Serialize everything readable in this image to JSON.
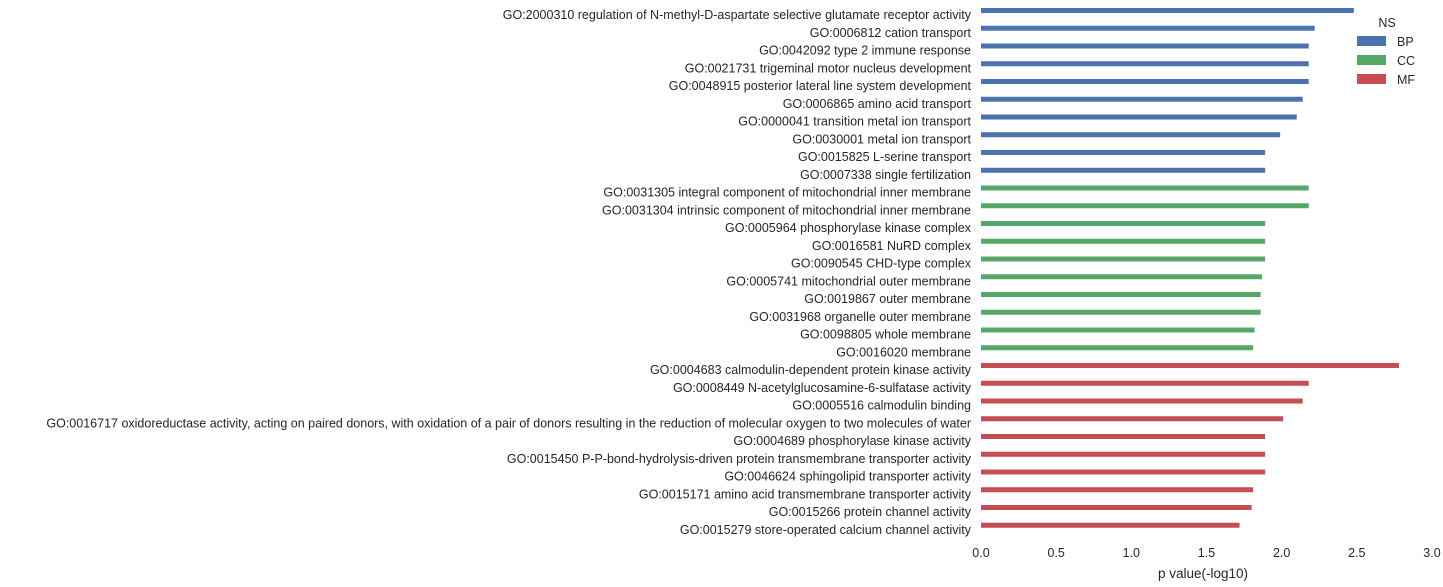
{
  "chart_data": {
    "type": "bar",
    "orientation": "horizontal",
    "xlabel": "p value(-log10)",
    "ylabel": "",
    "xlim": [
      0,
      3.0
    ],
    "xticks": [
      "0.0",
      "0.5",
      "1.0",
      "1.5",
      "2.0",
      "2.5",
      "3.0"
    ],
    "grid": false,
    "legend": {
      "title": "NS",
      "placement": "top-right",
      "entries": [
        {
          "name": "BP",
          "color": "#4c72b0"
        },
        {
          "name": "CC",
          "color": "#55a868"
        },
        {
          "name": "MF",
          "color": "#c44e52"
        }
      ]
    },
    "bars": [
      {
        "label": "GO:2000310 regulation of N-methyl-D-aspartate selective glutamate receptor activity",
        "ns": "BP",
        "value": 2.48
      },
      {
        "label": "GO:0006812 cation transport",
        "ns": "BP",
        "value": 2.22
      },
      {
        "label": "GO:0042092 type 2 immune response",
        "ns": "BP",
        "value": 2.18
      },
      {
        "label": "GO:0021731 trigeminal motor nucleus development",
        "ns": "BP",
        "value": 2.18
      },
      {
        "label": "GO:0048915 posterior lateral line system development",
        "ns": "BP",
        "value": 2.18
      },
      {
        "label": "GO:0006865 amino acid transport",
        "ns": "BP",
        "value": 2.14
      },
      {
        "label": "GO:0000041 transition metal ion transport",
        "ns": "BP",
        "value": 2.1
      },
      {
        "label": "GO:0030001 metal ion transport",
        "ns": "BP",
        "value": 1.99
      },
      {
        "label": "GO:0015825 L-serine transport",
        "ns": "BP",
        "value": 1.89
      },
      {
        "label": "GO:0007338 single fertilization",
        "ns": "BP",
        "value": 1.89
      },
      {
        "label": "GO:0031305 integral component of mitochondrial inner membrane",
        "ns": "CC",
        "value": 2.18
      },
      {
        "label": "GO:0031304 intrinsic component of mitochondrial inner membrane",
        "ns": "CC",
        "value": 2.18
      },
      {
        "label": "GO:0005964 phosphorylase kinase complex",
        "ns": "CC",
        "value": 1.89
      },
      {
        "label": "GO:0016581 NuRD complex",
        "ns": "CC",
        "value": 1.89
      },
      {
        "label": "GO:0090545 CHD-type complex",
        "ns": "CC",
        "value": 1.89
      },
      {
        "label": "GO:0005741 mitochondrial outer membrane",
        "ns": "CC",
        "value": 1.87
      },
      {
        "label": "GO:0019867 outer membrane",
        "ns": "CC",
        "value": 1.86
      },
      {
        "label": "GO:0031968 organelle outer membrane",
        "ns": "CC",
        "value": 1.86
      },
      {
        "label": "GO:0098805 whole membrane",
        "ns": "CC",
        "value": 1.82
      },
      {
        "label": "GO:0016020 membrane",
        "ns": "CC",
        "value": 1.81
      },
      {
        "label": "GO:0004683 calmodulin-dependent protein kinase activity",
        "ns": "MF",
        "value": 2.78
      },
      {
        "label": "GO:0008449 N-acetylglucosamine-6-sulfatase activity",
        "ns": "MF",
        "value": 2.18
      },
      {
        "label": "GO:0005516 calmodulin binding",
        "ns": "MF",
        "value": 2.14
      },
      {
        "label": "GO:0016717 oxidoreductase activity, acting on paired donors, with oxidation of a pair of donors resulting in the reduction of molecular oxygen to two molecules of water",
        "ns": "MF",
        "value": 2.01
      },
      {
        "label": "GO:0004689 phosphorylase kinase activity",
        "ns": "MF",
        "value": 1.89
      },
      {
        "label": "GO:0015450 P-P-bond-hydrolysis-driven protein transmembrane transporter activity",
        "ns": "MF",
        "value": 1.89
      },
      {
        "label": "GO:0046624 sphingolipid transporter activity",
        "ns": "MF",
        "value": 1.89
      },
      {
        "label": "GO:0015171 amino acid transmembrane transporter activity",
        "ns": "MF",
        "value": 1.81
      },
      {
        "label": "GO:0015266 protein channel activity",
        "ns": "MF",
        "value": 1.8
      },
      {
        "label": "GO:0015279 store-operated calcium channel activity",
        "ns": "MF",
        "value": 1.72
      }
    ]
  }
}
